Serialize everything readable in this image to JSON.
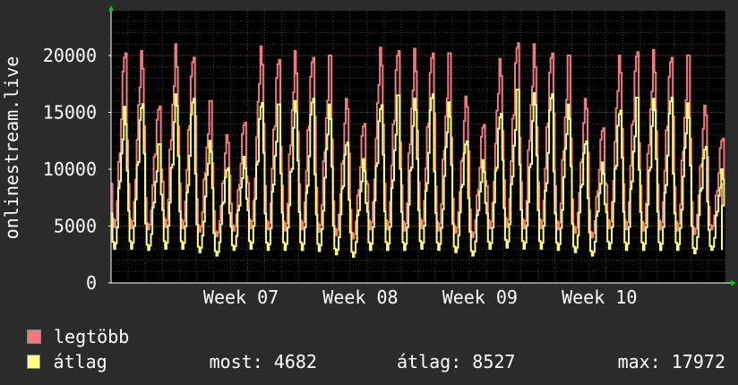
{
  "chart_data": {
    "type": "line",
    "ylabel": "onlinestream.live",
    "ylim": [
      0,
      24000
    ],
    "y_ticks": [
      0,
      5000,
      10000,
      15000,
      20000
    ],
    "y_tick_labels": [
      "0",
      "5000",
      "10000",
      "15000",
      "20000"
    ],
    "x_tick_labels": [
      "Week 07",
      "Week 08",
      "Week 09",
      "Week 10"
    ],
    "grid": true,
    "legend": "bottom",
    "series": [
      {
        "name": "legtöbb",
        "color": "#f0797e"
      },
      {
        "name": "átlag",
        "color": "#ffff80"
      }
    ],
    "daily_peak_max": [
      20200,
      20400,
      15800,
      21000,
      20600,
      16000,
      13000,
      14100,
      20800,
      20000,
      20400,
      20600,
      20000,
      16200,
      14000,
      20700,
      20800,
      20600,
      21000,
      20200,
      16400,
      13900,
      19700,
      21500,
      21000,
      21000,
      20000,
      16200,
      13600,
      20000,
      20700,
      20500,
      20600,
      20000,
      15600,
      12700
    ],
    "daily_peak_avg": [
      15500,
      16400,
      12200,
      16600,
      16200,
      12500,
      10300,
      11100,
      16500,
      15700,
      16000,
      16200,
      15700,
      12600,
      10900,
      16300,
      16500,
      16200,
      16600,
      15900,
      12700,
      10800,
      15500,
      17000,
      16700,
      16600,
      15700,
      12700,
      10600,
      15800,
      16300,
      16200,
      16300,
      15800,
      12200,
      10000
    ],
    "daily_trough_max": [
      4900,
      4800,
      4700,
      4900,
      4800,
      4500,
      4100,
      4600,
      4800,
      4700,
      4600,
      4700,
      4500,
      4200,
      3900,
      4700,
      4700,
      4600,
      4800,
      4600,
      4400,
      4000,
      4800,
      4900,
      4800,
      4800,
      4700,
      4400,
      4000,
      4800,
      4700,
      4600,
      4700,
      4600,
      4300,
      4700
    ],
    "daily_trough_avg": [
      3000,
      3000,
      2900,
      3000,
      3000,
      2700,
      2400,
      2900,
      3000,
      2900,
      2900,
      2900,
      2800,
      2500,
      2300,
      2900,
      2900,
      2900,
      3000,
      2900,
      2700,
      2400,
      3000,
      3100,
      3000,
      3000,
      2900,
      2700,
      2400,
      3000,
      2900,
      2900,
      2900,
      2900,
      2600,
      2900
    ]
  },
  "legend": {
    "max_label": "legtöbb",
    "avg_label": "átlag",
    "now_text": "most: 4682",
    "avg_text": "átlag: 8527",
    "max_text": "max: 17972"
  },
  "colors": {
    "background": "#2b2b2b",
    "plot_bg": "#000000",
    "grid": "#4a4a4a",
    "axis": "#ffffff",
    "arrow": "#00cc00"
  }
}
